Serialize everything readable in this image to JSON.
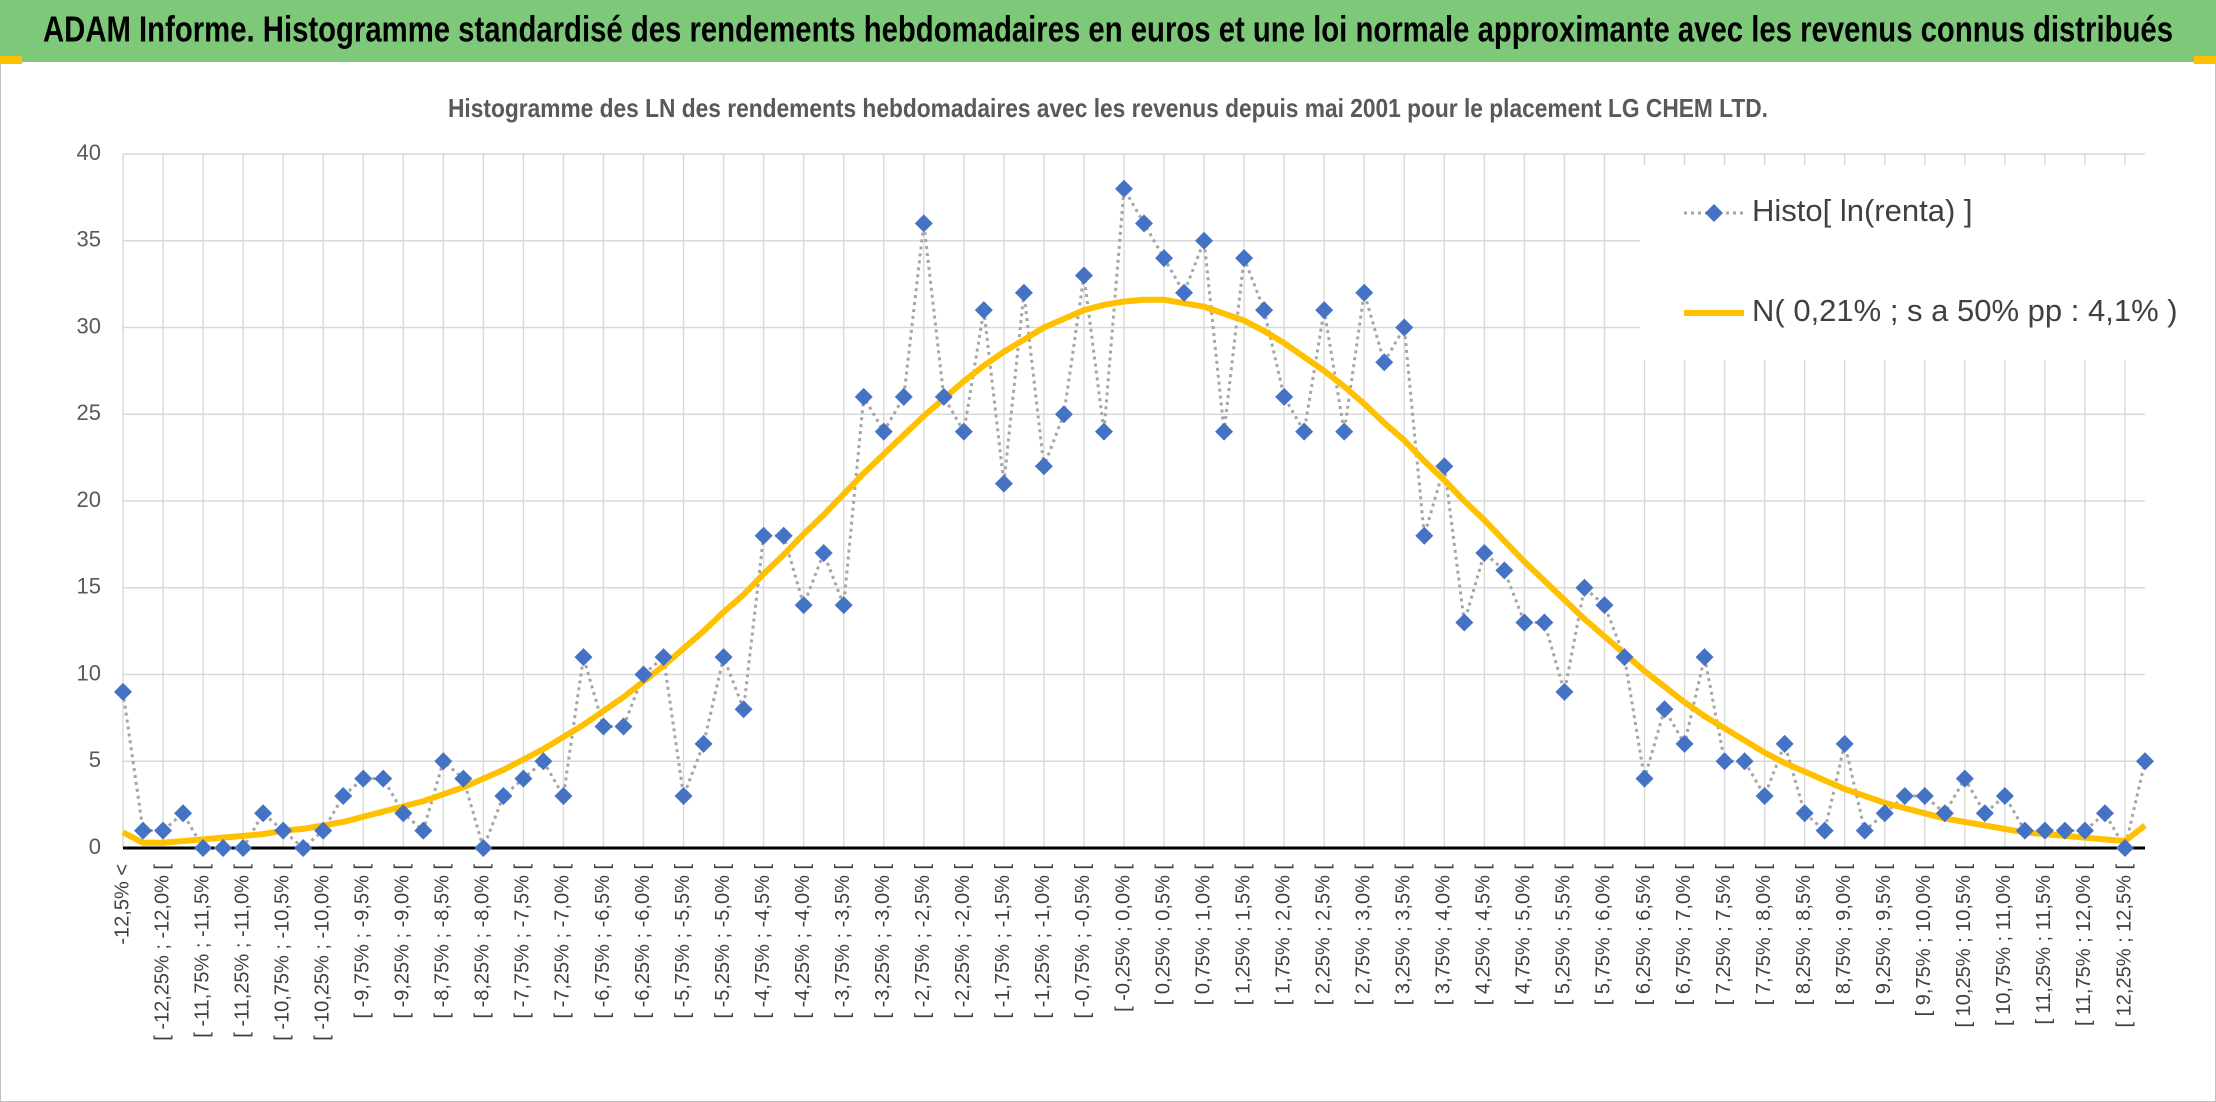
{
  "chart_data": {
    "type": "line",
    "title": "ADAM Informe. Histogramme standardisé des rendements hebdomadaires en euros et une loi normale approximante avec les revenus connus distribués",
    "subtitle": "Histogramme des LN des rendements hebdomadaires avec les revenus depuis mai 2001 pour le placement LG CHEM LTD.",
    "categories": [
      "-12,5% <",
      null,
      "[ -12,25% ; -12,0% [",
      null,
      "[ -11,75% ; -11,5% [",
      null,
      "[ -11,25% ; -11,0% [",
      null,
      "[ -10,75% ; -10,5% [",
      null,
      "[ -10,25% ; -10,0% [",
      null,
      "[ -9,75% ; -9,5% [",
      null,
      "[ -9,25% ; -9,0% [",
      null,
      "[ -8,75% ; -8,5% [",
      null,
      "[ -8,25% ; -8,0% [",
      null,
      "[ -7,75% ; -7,5% [",
      null,
      "[ -7,25% ; -7,0% [",
      null,
      "[ -6,75% ; -6,5% [",
      null,
      "[ -6,25% ; -6,0% [",
      null,
      "[ -5,75% ; -5,5% [",
      null,
      "[ -5,25% ; -5,0% [",
      null,
      "[ -4,75% ; -4,5% [",
      null,
      "[ -4,25% ; -4,0% [",
      null,
      "[ -3,75% ; -3,5% [",
      null,
      "[ -3,25% ; -3,0% [",
      null,
      "[ -2,75% ; -2,5% [",
      null,
      "[ -2,25% ; -2,0% [",
      null,
      "[ -1,75% ; -1,5% [",
      null,
      "[ -1,25% ; -1,0% [",
      null,
      "[ -0,75% ; -0,5% [",
      null,
      "[ -0,25% ; 0,0% [",
      null,
      "[ 0,25% ; 0,5% [",
      null,
      "[ 0,75% ; 1,0% [",
      null,
      "[ 1,25% ; 1,5% [",
      null,
      "[ 1,75% ; 2,0% [",
      null,
      "[ 2,25% ; 2,5% [",
      null,
      "[ 2,75% ; 3,0% [",
      null,
      "[ 3,25% ; 3,5% [",
      null,
      "[ 3,75% ; 4,0% [",
      null,
      "[ 4,25% ; 4,5% [",
      null,
      "[ 4,75% ; 5,0% [",
      null,
      "[ 5,25% ; 5,5% [",
      null,
      "[ 5,75% ; 6,0% [",
      null,
      "[ 6,25% ; 6,5% [",
      null,
      "[ 6,75% ; 7,0% [",
      null,
      "[ 7,25% ; 7,5% [",
      null,
      "[ 7,75% ; 8,0% [",
      null,
      "[ 8,25% ; 8,5% [",
      null,
      "[ 8,75% ; 9,0% [",
      null,
      "[ 9,25% ; 9,5% [",
      null,
      "[ 9,75% ; 10,0% [",
      null,
      "[ 10,25% ; 10,5% [",
      null,
      "[ 10,75% ; 11,0% [",
      null,
      "[ 11,25% ; 11,5% [",
      null,
      "[ 11,75% ; 12,0% [",
      null,
      "[ 12,25% ; 12,5% [",
      null
    ],
    "series": [
      {
        "name": "Histo[ ln(renta) ]",
        "color": "#4472c4",
        "line_color": "#a5a5a5",
        "marker": "diamond",
        "values": [
          9,
          1,
          1,
          2,
          0,
          0,
          0,
          2,
          1,
          0,
          1,
          3,
          4,
          4,
          2,
          1,
          5,
          4,
          0,
          3,
          4,
          5,
          3,
          11,
          7,
          7,
          10,
          11,
          3,
          6,
          11,
          8,
          18,
          18,
          14,
          17,
          14,
          26,
          24,
          26,
          36,
          26,
          24,
          31,
          21,
          32,
          22,
          25,
          33,
          24,
          38,
          36,
          34,
          32,
          35,
          24,
          34,
          31,
          26,
          24,
          31,
          24,
          32,
          28,
          30,
          18,
          22,
          13,
          17,
          16,
          13,
          13,
          9,
          15,
          14,
          11,
          4,
          8,
          6,
          11,
          5,
          5,
          3,
          6,
          2,
          1,
          6,
          1,
          2,
          3,
          3,
          2,
          4,
          2,
          3,
          1,
          1,
          1,
          1,
          2,
          0,
          5
        ]
      },
      {
        "name": "N( 0,21% ; s a 50% pp : 4,1% )",
        "color": "#ffc000",
        "values": [
          0.9,
          0.3,
          0.3,
          0.4,
          0.5,
          0.6,
          0.7,
          0.8,
          1.0,
          1.1,
          1.3,
          1.5,
          1.8,
          2.1,
          2.4,
          2.7,
          3.1,
          3.5,
          4.0,
          4.5,
          5.1,
          5.7,
          6.4,
          7.1,
          7.9,
          8.7,
          9.6,
          10.5,
          11.5,
          12.5,
          13.6,
          14.6,
          15.8,
          16.9,
          18.1,
          19.2,
          20.4,
          21.6,
          22.7,
          23.8,
          24.9,
          25.9,
          26.9,
          27.8,
          28.6,
          29.3,
          30.0,
          30.5,
          31.0,
          31.3,
          31.5,
          31.6,
          31.6,
          31.4,
          31.2,
          30.8,
          30.4,
          29.8,
          29.1,
          28.3,
          27.5,
          26.6,
          25.6,
          24.5,
          23.5,
          22.3,
          21.2,
          20.0,
          18.9,
          17.7,
          16.5,
          15.4,
          14.3,
          13.2,
          12.2,
          11.2,
          10.2,
          9.3,
          8.4,
          7.6,
          6.9,
          6.2,
          5.5,
          4.9,
          4.4,
          3.9,
          3.4,
          3.0,
          2.6,
          2.3,
          2.0,
          1.7,
          1.5,
          1.3,
          1.1,
          0.9,
          0.8,
          0.7,
          0.6,
          0.5,
          0.4,
          1.3
        ]
      }
    ],
    "ylim": [
      0,
      40
    ],
    "yticks": [
      0,
      5,
      10,
      15,
      20,
      25,
      30,
      35,
      40
    ],
    "grid": true,
    "legend": "top-right"
  }
}
